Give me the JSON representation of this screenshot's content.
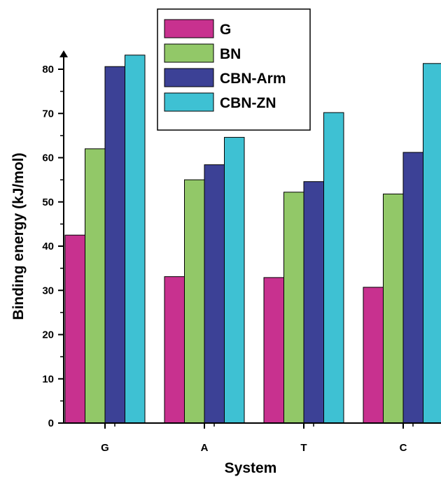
{
  "chart_data": {
    "type": "bar",
    "xlabel": "System",
    "ylabel": "Binding energy  (kJ/mol)",
    "categories": [
      "G",
      "A",
      "T",
      "C"
    ],
    "ylim": [
      0,
      85
    ],
    "yticks": [
      0,
      10,
      20,
      30,
      40,
      50,
      60,
      70,
      80
    ],
    "legend_position": "top-center",
    "grid": false,
    "series": [
      {
        "name": "G",
        "color": "#c8318f",
        "values": [
          42.5,
          33.1,
          32.9,
          30.7
        ]
      },
      {
        "name": "BN",
        "color": "#92c868",
        "values": [
          62.0,
          55.0,
          52.2,
          51.8
        ]
      },
      {
        "name": "CBN-Arm",
        "color": "#3c4196",
        "values": [
          80.6,
          58.4,
          54.6,
          61.2
        ]
      },
      {
        "name": "CBN-ZN",
        "color": "#3ec1d3",
        "values": [
          83.2,
          64.6,
          70.2,
          81.3
        ]
      }
    ]
  }
}
